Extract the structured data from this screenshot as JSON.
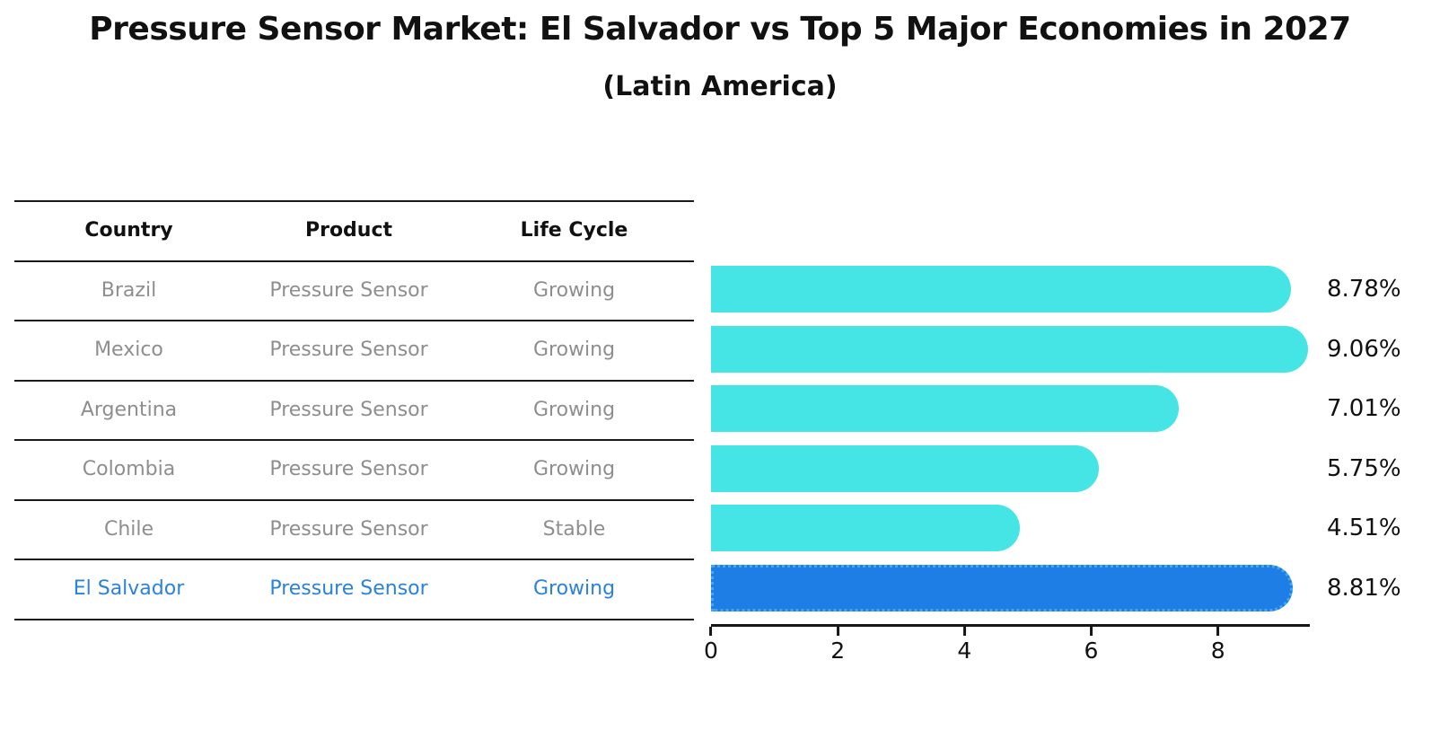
{
  "title": "Pressure Sensor Market: El Salvador vs Top 5 Major Economies in 2027",
  "subtitle": "(Latin America)",
  "table": {
    "headers": [
      "Country",
      "Product",
      "Life Cycle"
    ],
    "rows": [
      {
        "country": "Brazil",
        "product": "Pressure Sensor",
        "life_cycle": "Growing",
        "highlight": false
      },
      {
        "country": "Mexico",
        "product": "Pressure Sensor",
        "life_cycle": "Growing",
        "highlight": false
      },
      {
        "country": "Argentina",
        "product": "Pressure Sensor",
        "life_cycle": "Growing",
        "highlight": false
      },
      {
        "country": "Colombia",
        "product": "Pressure Sensor",
        "life_cycle": "Growing",
        "highlight": false
      },
      {
        "country": "Chile",
        "product": "Pressure Sensor",
        "life_cycle": "Stable",
        "highlight": false
      },
      {
        "country": "El Salvador",
        "product": "Pressure Sensor",
        "life_cycle": "Growing",
        "highlight": true
      }
    ]
  },
  "chart_data": {
    "type": "bar",
    "orientation": "horizontal",
    "title": "Pressure Sensor Market: El Salvador vs Top 5 Major Economies in 2027",
    "subtitle": "(Latin America)",
    "categories": [
      "Brazil",
      "Mexico",
      "Argentina",
      "Colombia",
      "Chile",
      "El Salvador"
    ],
    "values": [
      8.78,
      9.06,
      7.01,
      5.75,
      4.51,
      8.81
    ],
    "value_labels": [
      "8.78%",
      "9.06%",
      "7.01%",
      "5.75%",
      "4.51%",
      "8.81%"
    ],
    "x_ticks": [
      0,
      2,
      4,
      6,
      8
    ],
    "xlim": [
      0,
      9.45
    ],
    "grid": false,
    "legend": "none",
    "highlight_index": 5,
    "bar_color": "#45e5e5",
    "highlight_bar_color": "#1e7ee5",
    "highlight_border_color": "#42a8f0"
  },
  "colors": {
    "text_primary": "#111111",
    "text_muted": "#8e8e8e",
    "accent_text": "#2a82d9",
    "bar_cyan": "#45e5e5",
    "bar_blue": "#1e7ee5",
    "highlight_border": "#42a8f0",
    "axis": "#161616"
  }
}
